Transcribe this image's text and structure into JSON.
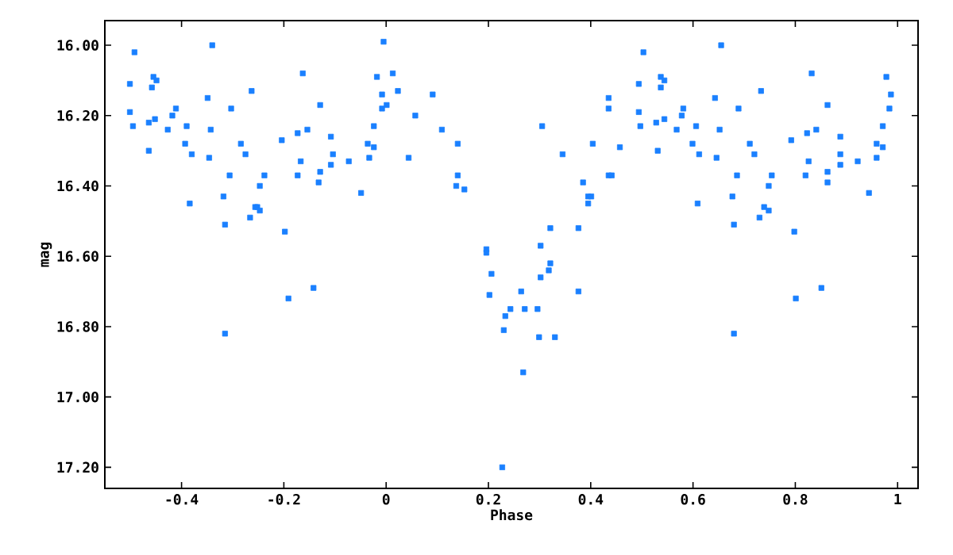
{
  "chart_data": {
    "type": "scatter",
    "xlabel": "Phase",
    "ylabel": "mag",
    "xlim": [
      -0.55,
      1.04
    ],
    "ylim": [
      17.26,
      15.93
    ],
    "xticks": [
      -0.4,
      -0.2,
      0,
      0.2,
      0.4,
      0.6,
      0.8,
      1
    ],
    "yticks": [
      {
        "value": 16.0,
        "label": "16.00"
      },
      {
        "value": 16.2,
        "label": "16.20"
      },
      {
        "value": 16.4,
        "label": "16.40"
      },
      {
        "value": 16.6,
        "label": "16.60"
      },
      {
        "value": 16.8,
        "label": "16.80"
      },
      {
        "value": 17.0,
        "label": "17.00"
      },
      {
        "value": 17.2,
        "label": "17.20"
      }
    ],
    "marker": "square",
    "grid": false,
    "series": [
      {
        "color": "#1a80ff",
        "x": [
          -0.492,
          -0.34,
          -0.501,
          -0.455,
          -0.449,
          -0.458,
          -0.349,
          -0.263,
          -0.501,
          -0.495,
          -0.464,
          -0.452,
          -0.427,
          -0.411,
          -0.418,
          -0.39,
          -0.343,
          -0.303,
          -0.464,
          -0.393,
          -0.38,
          -0.346,
          -0.284,
          -0.275,
          -0.306,
          -0.238,
          -0.247,
          -0.318,
          -0.384,
          -0.256,
          -0.252,
          -0.266,
          -0.247,
          -0.315,
          -0.198,
          -0.142,
          -0.191,
          -0.315,
          -0.204,
          -0.173,
          -0.154,
          -0.163,
          -0.129,
          -0.108,
          -0.104,
          -0.167,
          -0.173,
          -0.129,
          -0.132,
          -0.108,
          -0.073,
          -0.049,
          -0.005,
          -0.018,
          0.013,
          -0.008,
          0.023,
          -0.008,
          0.001,
          -0.024,
          -0.036,
          -0.024,
          -0.033,
          0.044,
          0.091,
          0.057,
          0.109,
          0.14,
          0.14,
          0.137,
          0.153,
          0.196,
          0.196,
          0.206,
          0.202,
          0.243,
          0.233,
          0.23,
          0.264,
          0.271,
          0.296,
          0.299,
          0.268,
          0.227,
          0.33,
          0.302,
          0.318,
          0.321,
          0.302,
          0.321,
          0.376,
          0.376,
          0.305,
          0.345,
          0.404,
          0.385,
          0.395,
          0.401,
          0.395,
          0.435,
          0.441,
          0.457,
          0.435,
          0.435,
          0.494,
          0.503,
          0.494,
          0.497,
          0.537,
          0.544,
          0.537,
          0.528,
          0.544,
          0.531,
          0.568,
          0.581,
          0.578,
          0.599,
          0.606,
          0.612,
          0.609,
          0.655,
          0.643,
          0.652,
          0.646,
          0.689,
          0.686,
          0.677,
          0.68,
          0.68,
          0.733,
          0.711,
          0.72,
          0.754,
          0.748,
          0.739,
          0.73,
          0.748,
          0.798,
          0.801,
          0.851,
          0.792,
          0.823,
          0.841,
          0.832,
          0.863,
          0.826,
          0.82,
          0.863,
          0.863,
          0.888,
          0.888,
          0.888,
          0.922,
          0.944,
          0.978,
          0.987,
          0.984,
          0.971,
          0.959,
          0.971,
          0.959
        ],
        "values": [
          16.02,
          16.0,
          16.11,
          16.09,
          16.1,
          16.12,
          16.15,
          16.13,
          16.19,
          16.23,
          16.22,
          16.21,
          16.24,
          16.18,
          16.2,
          16.23,
          16.24,
          16.18,
          16.3,
          16.28,
          16.31,
          16.32,
          16.28,
          16.31,
          16.37,
          16.37,
          16.4,
          16.43,
          16.45,
          16.46,
          16.46,
          16.49,
          16.47,
          16.51,
          16.53,
          16.69,
          16.72,
          16.82,
          16.27,
          16.25,
          16.24,
          16.08,
          16.17,
          16.26,
          16.31,
          16.33,
          16.37,
          16.36,
          16.39,
          16.34,
          16.33,
          16.42,
          15.99,
          16.09,
          16.08,
          16.14,
          16.13,
          16.18,
          16.17,
          16.23,
          16.28,
          16.29,
          16.32,
          16.32,
          16.14,
          16.2,
          16.24,
          16.28,
          16.37,
          16.4,
          16.41,
          16.58,
          16.59,
          16.65,
          16.71,
          16.75,
          16.77,
          16.81,
          16.7,
          16.75,
          16.75,
          16.83,
          16.93,
          17.2,
          16.83,
          16.66,
          16.64,
          16.62,
          16.57,
          16.52,
          16.52,
          16.7,
          16.23,
          16.31,
          16.28,
          16.39,
          16.43,
          16.43,
          16.45,
          16.37,
          16.37,
          16.29,
          16.15,
          16.18,
          16.11,
          16.02,
          16.19,
          16.23,
          16.09,
          16.1,
          16.12,
          16.22,
          16.21,
          16.3,
          16.24,
          16.18,
          16.2,
          16.28,
          16.23,
          16.31,
          16.45,
          16.0,
          16.15,
          16.24,
          16.32,
          16.18,
          16.37,
          16.43,
          16.51,
          16.82,
          16.13,
          16.28,
          16.31,
          16.37,
          16.4,
          16.46,
          16.49,
          16.47,
          16.53,
          16.72,
          16.69,
          16.27,
          16.25,
          16.24,
          16.08,
          16.17,
          16.33,
          16.37,
          16.36,
          16.39,
          16.26,
          16.31,
          16.34,
          16.33,
          16.42,
          16.09,
          16.14,
          16.18,
          16.23,
          16.28,
          16.29,
          16.32
        ]
      }
    ]
  }
}
